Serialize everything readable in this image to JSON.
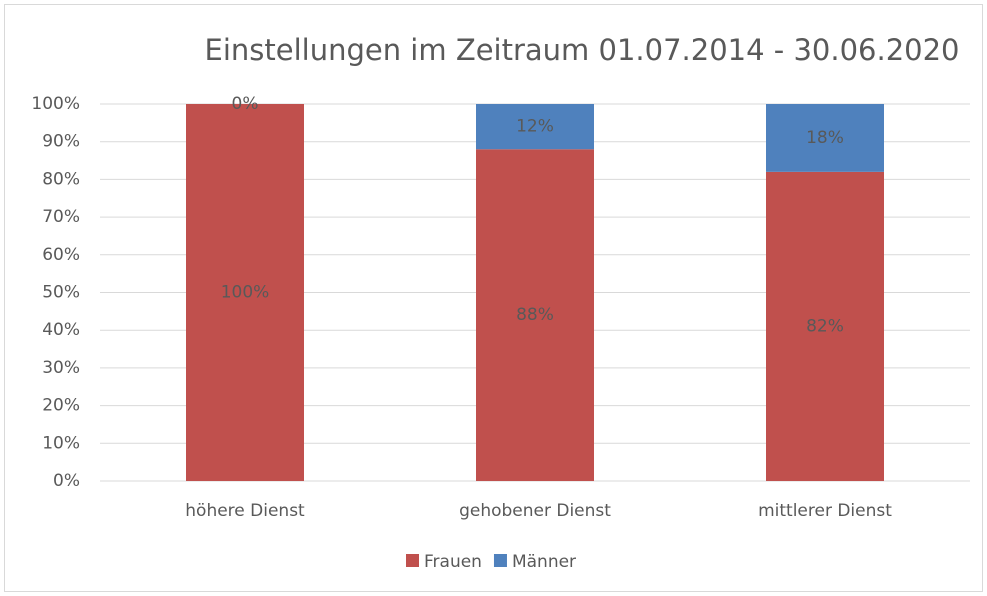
{
  "chart_data": {
    "type": "stacked_bar",
    "title": "Einstellungen im Zeitraum 01.07.2014 - 30.06.2020",
    "categories": [
      "höhere Dienst",
      "gehobener Dienst",
      "mittlerer Dienst"
    ],
    "series": [
      {
        "name": "Frauen",
        "color": "#c0504d",
        "values": [
          100,
          88,
          82
        ],
        "value_labels": [
          "100%",
          "88%",
          "82%"
        ]
      },
      {
        "name": "Männer",
        "color": "#4f81bd",
        "values": [
          0,
          12,
          18
        ],
        "value_labels": [
          "0%",
          "12%",
          "18%"
        ]
      }
    ],
    "ylim": [
      0,
      100
    ],
    "yticks": [
      {
        "value": 0,
        "label": "0%"
      },
      {
        "value": 10,
        "label": "10%"
      },
      {
        "value": 20,
        "label": "20%"
      },
      {
        "value": 30,
        "label": "30%"
      },
      {
        "value": 40,
        "label": "40%"
      },
      {
        "value": 50,
        "label": "50%"
      },
      {
        "value": 60,
        "label": "60%"
      },
      {
        "value": 70,
        "label": "70%"
      },
      {
        "value": 80,
        "label": "80%"
      },
      {
        "value": 90,
        "label": "90%"
      },
      {
        "value": 100,
        "label": "100%"
      }
    ],
    "grid": true,
    "legend": "bottom"
  }
}
